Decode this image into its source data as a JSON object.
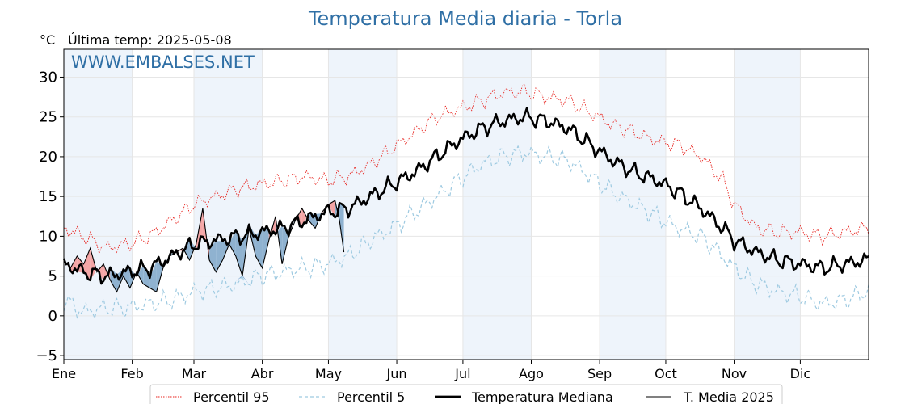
{
  "chart_data": {
    "type": "line",
    "title": "Temperatura Media diaria - Torla",
    "unit_label": "°C",
    "last_temp_label": "Última temp: 2025-05-08",
    "watermark": "WWW.EMBALSES.NET",
    "ylim": [
      -5.5,
      33.5
    ],
    "yticks": [
      -5,
      0,
      5,
      10,
      15,
      20,
      25,
      30
    ],
    "ytick_labels": [
      "−5",
      "0",
      "5",
      "10",
      "15",
      "20",
      "25",
      "30"
    ],
    "months": [
      "Ene",
      "Feb",
      "Mar",
      "Abr",
      "May",
      "Jun",
      "Jul",
      "Ago",
      "Sep",
      "Oct",
      "Nov",
      "Dic"
    ],
    "month_start_day": [
      1,
      32,
      60,
      91,
      121,
      152,
      182,
      213,
      244,
      274,
      305,
      335
    ],
    "x_range_days": [
      1,
      366
    ],
    "grid": true,
    "legend_placement": "bottom",
    "colors": {
      "p95": "#e8231e",
      "p5": "#9ecae1",
      "mediana": "#000000",
      "media2025": "#000000",
      "above_fill": "#f4a6a6",
      "below_fill": "#8fb2d0",
      "below_p5_fill": "#2166ac",
      "shade": "#eef4fb",
      "title": "#2f6fa5"
    },
    "series": [
      {
        "name": "Percentil 95",
        "style": "dotted-red",
        "anchors_day": [
          1,
          10,
          20,
          30,
          40,
          50,
          60,
          70,
          80,
          90,
          100,
          110,
          120,
          130,
          140,
          150,
          160,
          170,
          180,
          190,
          200,
          210,
          220,
          230,
          240,
          250,
          260,
          270,
          280,
          290,
          300,
          305,
          315,
          325,
          335,
          345,
          355,
          365
        ],
        "anchors_value": [
          11,
          10,
          8.5,
          9,
          10,
          12,
          14,
          15,
          16,
          16.5,
          17,
          17.5,
          17,
          17.5,
          19,
          21,
          23,
          25,
          26,
          27,
          28,
          28.2,
          27.5,
          27,
          25.5,
          24,
          23,
          22,
          21.5,
          20,
          17,
          14,
          11,
          10.5,
          10.5,
          10,
          10.5,
          11
        ],
        "noise_amp": 1.2
      },
      {
        "name": "Percentil 5",
        "style": "dashed-lightblue",
        "anchors_day": [
          1,
          10,
          20,
          30,
          40,
          50,
          60,
          70,
          80,
          90,
          100,
          110,
          120,
          130,
          140,
          150,
          160,
          170,
          180,
          190,
          200,
          210,
          220,
          230,
          240,
          250,
          260,
          270,
          280,
          290,
          300,
          305,
          315,
          325,
          335,
          345,
          355,
          365
        ],
        "anchors_value": [
          2,
          0.5,
          1,
          1,
          1.5,
          2,
          3,
          3.5,
          4,
          5,
          5.5,
          6,
          6.5,
          7.5,
          9.5,
          11,
          13,
          15,
          17,
          19,
          20,
          20.5,
          20,
          19.5,
          17.5,
          15.5,
          14,
          12.5,
          11,
          10,
          7.5,
          6,
          4,
          3,
          2.5,
          1.5,
          2,
          3
        ],
        "noise_amp": 1.5
      },
      {
        "name": "Temperatura Mediana",
        "style": "solid-thick-black",
        "anchors_day": [
          1,
          10,
          20,
          30,
          40,
          50,
          60,
          70,
          80,
          90,
          100,
          110,
          120,
          130,
          140,
          150,
          160,
          170,
          180,
          190,
          200,
          210,
          220,
          230,
          240,
          250,
          260,
          270,
          280,
          290,
          300,
          305,
          315,
          325,
          335,
          345,
          355,
          365
        ],
        "anchors_value": [
          6.5,
          5.5,
          5,
          5.5,
          6,
          7.5,
          9,
          9.5,
          10,
          10.5,
          11,
          12,
          13,
          13.5,
          15,
          16.5,
          18,
          20,
          22,
          23.5,
          24.5,
          25,
          24.5,
          23.5,
          21.5,
          19.5,
          18,
          17,
          15.5,
          13.5,
          11,
          9.5,
          8,
          7,
          6.5,
          6,
          6.5,
          7
        ],
        "noise_amp": 1.3
      },
      {
        "name": "T. Media 2025",
        "style": "solid-thin-black",
        "day": [
          1,
          4,
          7,
          10,
          13,
          16,
          19,
          22,
          25,
          28,
          31,
          34,
          37,
          40,
          43,
          46,
          49,
          52,
          55,
          58,
          61,
          64,
          67,
          70,
          73,
          76,
          79,
          82,
          85,
          88,
          91,
          94,
          97,
          100,
          103,
          106,
          109,
          112,
          115,
          118,
          121,
          124,
          126,
          128
        ],
        "values": [
          7,
          6,
          7.5,
          6.5,
          8.5,
          5.5,
          6.5,
          4.5,
          3,
          5,
          3.5,
          5.5,
          4,
          3.5,
          3,
          6,
          7.5,
          8,
          8.5,
          7,
          9,
          13.5,
          7,
          5.5,
          7,
          9,
          7.5,
          5,
          11,
          7.5,
          6,
          9.5,
          12.5,
          6.5,
          10,
          12,
          13.5,
          12,
          11,
          13,
          14,
          14.5,
          12,
          8
        ]
      }
    ]
  },
  "legend": {
    "items": [
      {
        "label": "Percentil 95"
      },
      {
        "label": "Percentil 5"
      },
      {
        "label": "Temperatura Mediana"
      },
      {
        "label": "T. Media 2025"
      }
    ]
  }
}
